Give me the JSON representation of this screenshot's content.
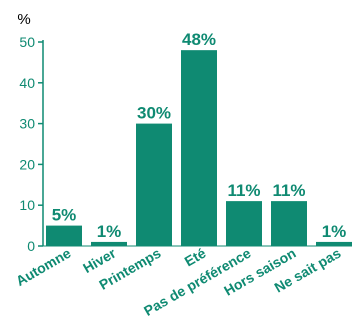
{
  "chart_data": {
    "type": "bar",
    "categories": [
      "Automne",
      "Hiver",
      "Printemps",
      "Eté",
      "Pas de préférence",
      "Hors saison",
      "Ne sait pas"
    ],
    "values": [
      5,
      1,
      30,
      48,
      11,
      11,
      1
    ],
    "value_labels": [
      "5%",
      "1%",
      "30%",
      "48%",
      "11%",
      "11%",
      "1%"
    ],
    "ylabel": "%",
    "ylim": [
      0,
      50
    ],
    "yticks": [
      0,
      10,
      20,
      30,
      40,
      50
    ],
    "grid": false,
    "legend": "none",
    "colors": {
      "bar": "#0f8a72",
      "text": "#0f8a72",
      "axis": "#0f8a72"
    }
  }
}
